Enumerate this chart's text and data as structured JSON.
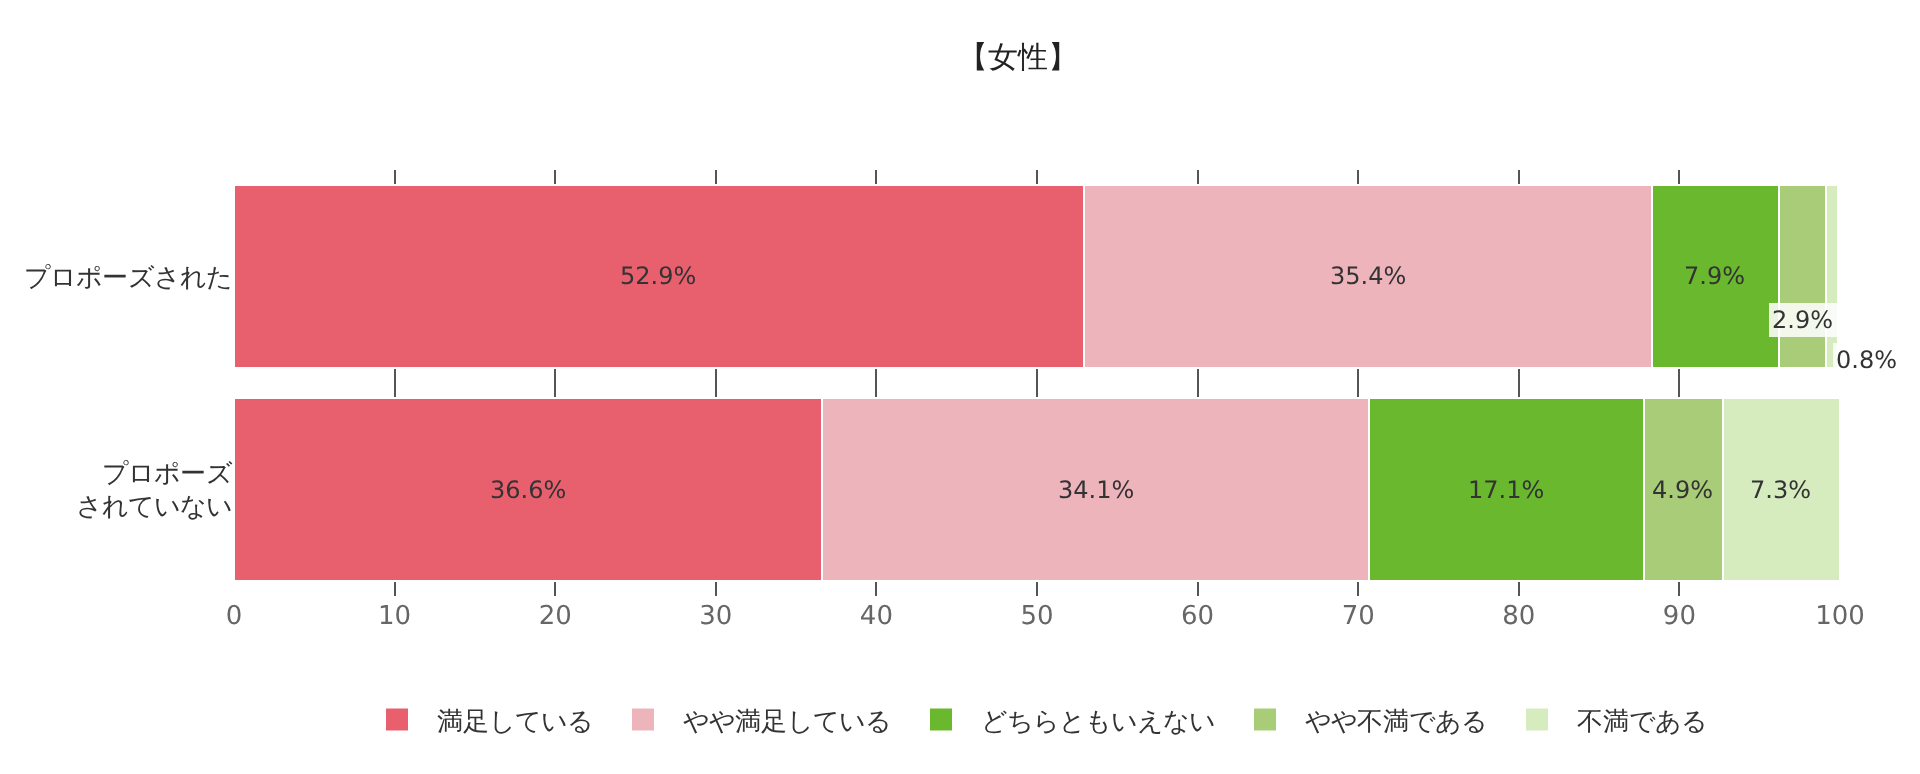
{
  "chart_data": {
    "type": "bar",
    "orientation": "horizontal",
    "stacked": true,
    "title": "【女性】",
    "categories": [
      "プロポーズされた",
      "プロポーズされていない"
    ],
    "series": [
      {
        "name": "満足している",
        "color": "#e8606e",
        "values": [
          52.9,
          36.6
        ],
        "value_labels": [
          "52.9%",
          "36.6%"
        ]
      },
      {
        "name": "やや満足している",
        "color": "#eeb4bb",
        "values": [
          35.4,
          34.1
        ],
        "value_labels": [
          "35.4%",
          "34.1%"
        ]
      },
      {
        "name": "どちらともいえない",
        "color": "#6ab82e",
        "values": [
          7.9,
          17.1
        ],
        "value_labels": [
          "7.9%",
          "17.1%"
        ]
      },
      {
        "name": "やや不満である",
        "color": "#a8cc78",
        "values": [
          2.9,
          4.9
        ],
        "value_labels": [
          "2.9%",
          "4.9%"
        ]
      },
      {
        "name": "不満である",
        "color": "#d6ecbf",
        "values": [
          0.8,
          7.3
        ],
        "value_labels": [
          "0.8%",
          "7.3%"
        ]
      }
    ],
    "xlim": [
      0,
      100
    ],
    "xticks": [
      0,
      10,
      20,
      30,
      40,
      50,
      60,
      70,
      80,
      90,
      100
    ],
    "grid": "x",
    "legend": "bottom"
  }
}
